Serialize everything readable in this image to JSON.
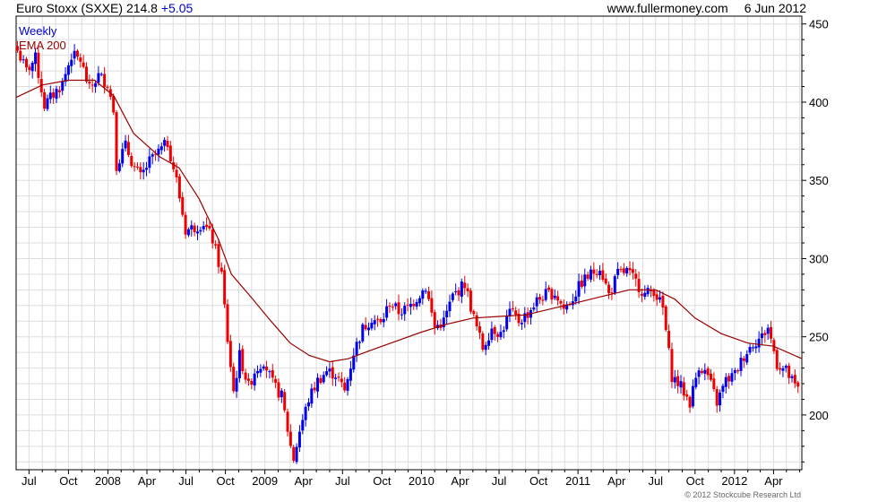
{
  "header": {
    "instrument": "Euro Stoxx (SXXE)",
    "price": "214.8",
    "change": "+5.05",
    "website": "www.fullermoney.com",
    "date": "6 Jun 2012"
  },
  "legend": {
    "weekly": "Weekly",
    "ema": "EMA 200"
  },
  "copyright": "© 2012 Stockcube Research Ltd",
  "colors": {
    "up": "#0000ee",
    "down": "#ee0000",
    "ema": "#990000",
    "grid": "#dddddd",
    "axis": "#000000"
  },
  "chart_data": {
    "type": "candlestick",
    "title": "Euro Stoxx (SXXE) 214.8 +5.05",
    "frequency": "Weekly",
    "xlim": [
      "2007-06-01",
      "2012-06-06"
    ],
    "ylim": [
      165,
      455
    ],
    "y_ticks": [
      200,
      250,
      300,
      350,
      400,
      450
    ],
    "x_ticks": [
      {
        "label": "Jul",
        "date": "2007-07-01"
      },
      {
        "label": "Oct",
        "date": "2007-10-01"
      },
      {
        "label": "2008",
        "date": "2008-01-01"
      },
      {
        "label": "Apr",
        "date": "2008-04-01"
      },
      {
        "label": "Jul",
        "date": "2008-07-01"
      },
      {
        "label": "Oct",
        "date": "2008-10-01"
      },
      {
        "label": "2009",
        "date": "2009-01-01"
      },
      {
        "label": "Apr",
        "date": "2009-04-01"
      },
      {
        "label": "Jul",
        "date": "2009-07-01"
      },
      {
        "label": "Oct",
        "date": "2009-10-01"
      },
      {
        "label": "2010",
        "date": "2010-01-01"
      },
      {
        "label": "Apr",
        "date": "2010-04-01"
      },
      {
        "label": "Jul",
        "date": "2010-07-01"
      },
      {
        "label": "Oct",
        "date": "2010-10-01"
      },
      {
        "label": "2011",
        "date": "2011-01-01"
      },
      {
        "label": "Apr",
        "date": "2011-04-01"
      },
      {
        "label": "Jul",
        "date": "2011-07-01"
      },
      {
        "label": "Oct",
        "date": "2011-10-01"
      },
      {
        "label": "2012",
        "date": "2012-01-01"
      },
      {
        "label": "Apr",
        "date": "2012-04-01"
      }
    ],
    "grid": true,
    "price_series": {
      "name": "Weekly",
      "points": [
        [
          "2007-06-04",
          433
        ],
        [
          "2007-06-25",
          420
        ],
        [
          "2007-07-16",
          428
        ],
        [
          "2007-08-06",
          398
        ],
        [
          "2007-08-27",
          405
        ],
        [
          "2007-09-17",
          412
        ],
        [
          "2007-10-08",
          430
        ],
        [
          "2007-10-29",
          427
        ],
        [
          "2007-11-19",
          408
        ],
        [
          "2007-12-10",
          417
        ],
        [
          "2007-12-31",
          412
        ],
        [
          "2008-01-14",
          395
        ],
        [
          "2008-01-21",
          360
        ],
        [
          "2008-02-11",
          372
        ],
        [
          "2008-03-03",
          358
        ],
        [
          "2008-03-17",
          352
        ],
        [
          "2008-04-07",
          362
        ],
        [
          "2008-04-28",
          368
        ],
        [
          "2008-05-19",
          374
        ],
        [
          "2008-06-09",
          350
        ],
        [
          "2008-06-30",
          318
        ],
        [
          "2008-07-21",
          320
        ],
        [
          "2008-08-11",
          323
        ],
        [
          "2008-09-01",
          312
        ],
        [
          "2008-09-22",
          290
        ],
        [
          "2008-10-06",
          248
        ],
        [
          "2008-10-20",
          215
        ],
        [
          "2008-11-03",
          238
        ],
        [
          "2008-11-24",
          218
        ],
        [
          "2008-12-08",
          228
        ],
        [
          "2008-12-29",
          235
        ],
        [
          "2009-01-19",
          220
        ],
        [
          "2009-02-09",
          212
        ],
        [
          "2009-03-02",
          180
        ],
        [
          "2009-03-09",
          172
        ],
        [
          "2009-03-23",
          190
        ],
        [
          "2009-04-13",
          210
        ],
        [
          "2009-05-04",
          222
        ],
        [
          "2009-05-25",
          228
        ],
        [
          "2009-06-15",
          226
        ],
        [
          "2009-07-06",
          215
        ],
        [
          "2009-07-27",
          240
        ],
        [
          "2009-08-17",
          255
        ],
        [
          "2009-09-07",
          262
        ],
        [
          "2009-09-28",
          258
        ],
        [
          "2009-10-19",
          272
        ],
        [
          "2009-11-09",
          266
        ],
        [
          "2009-11-30",
          268
        ],
        [
          "2009-12-21",
          275
        ],
        [
          "2010-01-11",
          282
        ],
        [
          "2010-02-01",
          256
        ],
        [
          "2010-02-22",
          260
        ],
        [
          "2010-03-15",
          276
        ],
        [
          "2010-04-12",
          284
        ],
        [
          "2010-05-03",
          262
        ],
        [
          "2010-05-24",
          243
        ],
        [
          "2010-06-14",
          256
        ],
        [
          "2010-07-05",
          252
        ],
        [
          "2010-07-26",
          266
        ],
        [
          "2010-08-16",
          260
        ],
        [
          "2010-09-06",
          265
        ],
        [
          "2010-09-27",
          273
        ],
        [
          "2010-10-18",
          277
        ],
        [
          "2010-11-08",
          278
        ],
        [
          "2010-11-29",
          268
        ],
        [
          "2010-12-20",
          275
        ],
        [
          "2011-01-10",
          285
        ],
        [
          "2011-01-31",
          290
        ],
        [
          "2011-02-21",
          295
        ],
        [
          "2011-03-14",
          277
        ],
        [
          "2011-04-04",
          290
        ],
        [
          "2011-04-25",
          292
        ],
        [
          "2011-05-16",
          285
        ],
        [
          "2011-06-06",
          277
        ],
        [
          "2011-06-27",
          280
        ],
        [
          "2011-07-18",
          268
        ],
        [
          "2011-08-08",
          225
        ],
        [
          "2011-08-29",
          218
        ],
        [
          "2011-09-19",
          208
        ],
        [
          "2011-10-10",
          232
        ],
        [
          "2011-10-31",
          225
        ],
        [
          "2011-11-21",
          208
        ],
        [
          "2011-12-12",
          222
        ],
        [
          "2012-01-02",
          226
        ],
        [
          "2012-01-23",
          238
        ],
        [
          "2012-02-13",
          246
        ],
        [
          "2012-03-05",
          250
        ],
        [
          "2012-03-19",
          256
        ],
        [
          "2012-04-09",
          233
        ],
        [
          "2012-04-30",
          228
        ],
        [
          "2012-05-21",
          218
        ],
        [
          "2012-06-04",
          214.8
        ]
      ]
    },
    "ema_series": {
      "name": "EMA 200",
      "points": [
        [
          "2007-06-01",
          403
        ],
        [
          "2007-08-01",
          411
        ],
        [
          "2007-10-01",
          414
        ],
        [
          "2007-12-01",
          414
        ],
        [
          "2008-01-15",
          404
        ],
        [
          "2008-03-01",
          380
        ],
        [
          "2008-05-01",
          365
        ],
        [
          "2008-06-15",
          358
        ],
        [
          "2008-08-01",
          338
        ],
        [
          "2008-09-15",
          312
        ],
        [
          "2008-10-15",
          290
        ],
        [
          "2008-12-01",
          275
        ],
        [
          "2009-01-15",
          260
        ],
        [
          "2009-03-01",
          246
        ],
        [
          "2009-04-15",
          238
        ],
        [
          "2009-06-01",
          234
        ],
        [
          "2009-07-15",
          236
        ],
        [
          "2009-09-01",
          241
        ],
        [
          "2009-11-01",
          247
        ],
        [
          "2010-01-01",
          253
        ],
        [
          "2010-03-01",
          258
        ],
        [
          "2010-05-01",
          262
        ],
        [
          "2010-07-01",
          263
        ],
        [
          "2010-09-01",
          264
        ],
        [
          "2010-11-01",
          268
        ],
        [
          "2011-01-01",
          272
        ],
        [
          "2011-03-01",
          276
        ],
        [
          "2011-05-01",
          280
        ],
        [
          "2011-07-01",
          280
        ],
        [
          "2011-08-15",
          274
        ],
        [
          "2011-10-01",
          262
        ],
        [
          "2011-12-01",
          252
        ],
        [
          "2012-02-01",
          246
        ],
        [
          "2012-04-01",
          244
        ],
        [
          "2012-06-06",
          236
        ]
      ]
    }
  }
}
